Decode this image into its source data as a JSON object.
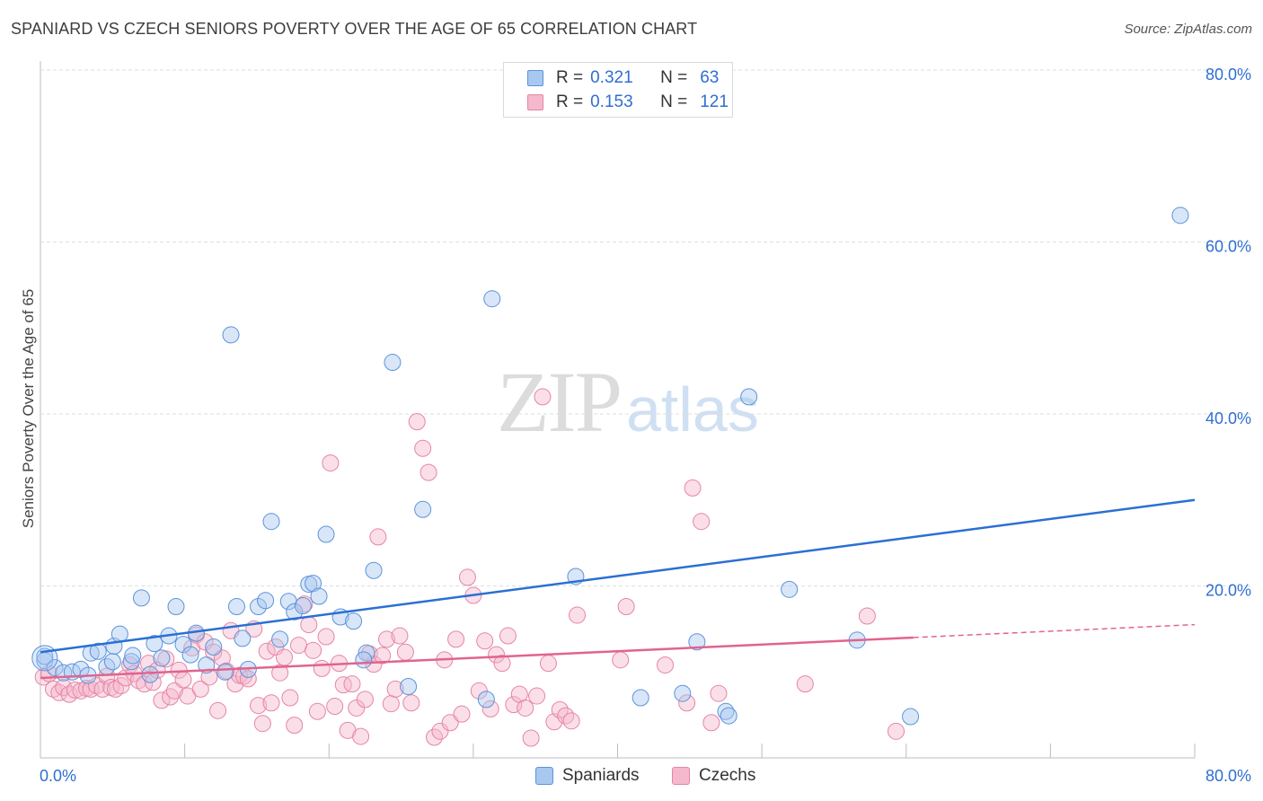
{
  "header": {
    "title": "SPANIARD VS CZECH SENIORS POVERTY OVER THE AGE OF 65 CORRELATION CHART",
    "source": "Source: ZipAtlas.com"
  },
  "watermark": {
    "zip": "ZIP",
    "atlas": "atlas"
  },
  "legend_top": [
    {
      "r_label": "R =",
      "r_value": "0.321",
      "n_label": "N =",
      "n_value": "63",
      "color": "#a9c8f0"
    },
    {
      "r_label": "R =",
      "r_value": "0.153",
      "n_label": "N =",
      "n_value": "121",
      "color": "#f5b8cc"
    }
  ],
  "legend_bottom": [
    {
      "label": "Spaniards",
      "color": "#a9c8f0"
    },
    {
      "label": "Czechs",
      "color": "#f5b8cc"
    }
  ],
  "chart_data": {
    "type": "scatter",
    "title": "SPANIARD VS CZECH SENIORS POVERTY OVER THE AGE OF 65 CORRELATION CHART",
    "ylabel": "Seniors Poverty Over the Age of 65",
    "xlim": [
      0,
      80
    ],
    "ylim": [
      0,
      80
    ],
    "x_tick_labels": [
      "0.0%",
      "80.0%"
    ],
    "y_tick_labels": [
      "20.0%",
      "40.0%",
      "60.0%",
      "80.0%"
    ],
    "y_ticks": [
      20,
      40,
      60,
      80
    ],
    "grid": "horizontal dashed",
    "legend": "top-center",
    "colors": {
      "spaniards_fill": "#a9c8f0",
      "spaniards_stroke": "#5b93dc",
      "spaniards_line": "#2b6fd3",
      "czechs_fill": "#f5b8cc",
      "czechs_stroke": "#e784a6",
      "czechs_line": "#e0648f",
      "tick_label": "#2f6fd0",
      "grid": "#dedede"
    },
    "series": [
      {
        "name": "Spaniards",
        "r": 0.321,
        "n": 63,
        "trend": {
          "x": [
            0,
            80
          ],
          "y": [
            12.3,
            30.0
          ]
        },
        "points": [
          [
            0.3,
            11.3
          ],
          [
            1.0,
            10.5
          ],
          [
            1.6,
            9.9
          ],
          [
            2.2,
            10.0
          ],
          [
            2.8,
            10.3
          ],
          [
            3.3,
            9.6
          ],
          [
            3.5,
            12.2
          ],
          [
            4.0,
            12.4
          ],
          [
            4.6,
            10.6
          ],
          [
            5.0,
            11.2
          ],
          [
            5.1,
            13.0
          ],
          [
            5.5,
            14.4
          ],
          [
            6.3,
            11.2
          ],
          [
            6.4,
            11.9
          ],
          [
            7.0,
            18.6
          ],
          [
            7.6,
            9.7
          ],
          [
            7.9,
            13.3
          ],
          [
            8.4,
            11.6
          ],
          [
            8.9,
            14.2
          ],
          [
            9.4,
            17.6
          ],
          [
            9.9,
            13.2
          ],
          [
            10.4,
            12.0
          ],
          [
            10.8,
            14.5
          ],
          [
            11.5,
            10.8
          ],
          [
            12.0,
            12.9
          ],
          [
            12.8,
            10.0
          ],
          [
            13.2,
            49.2
          ],
          [
            13.6,
            17.6
          ],
          [
            14.0,
            13.9
          ],
          [
            14.4,
            10.3
          ],
          [
            15.1,
            17.6
          ],
          [
            15.6,
            18.3
          ],
          [
            16.0,
            27.5
          ],
          [
            16.6,
            13.8
          ],
          [
            17.2,
            18.2
          ],
          [
            17.6,
            17.0
          ],
          [
            18.2,
            17.7
          ],
          [
            18.6,
            20.2
          ],
          [
            18.9,
            20.3
          ],
          [
            19.3,
            18.8
          ],
          [
            19.8,
            26.0
          ],
          [
            20.8,
            16.4
          ],
          [
            21.7,
            15.9
          ],
          [
            22.6,
            12.2
          ],
          [
            22.4,
            11.4
          ],
          [
            23.1,
            21.8
          ],
          [
            24.4,
            46.0
          ],
          [
            25.5,
            8.3
          ],
          [
            26.5,
            28.9
          ],
          [
            30.9,
            6.8
          ],
          [
            31.3,
            53.4
          ],
          [
            37.1,
            21.1
          ],
          [
            41.6,
            7.0
          ],
          [
            44.5,
            7.5
          ],
          [
            45.5,
            13.5
          ],
          [
            47.5,
            5.4
          ],
          [
            47.7,
            4.9
          ],
          [
            49.1,
            42.0
          ],
          [
            51.9,
            19.6
          ],
          [
            56.6,
            13.7
          ],
          [
            60.3,
            4.8
          ],
          [
            79.0,
            63.1
          ],
          [
            0.3,
            11.8
          ]
        ]
      },
      {
        "name": "Czechs",
        "r": 0.153,
        "n": 121,
        "trend": {
          "x": [
            0,
            60.5
          ],
          "y": [
            9.3,
            14.0
          ]
        },
        "trend_dashed": {
          "x": [
            60.5,
            80
          ],
          "y": [
            14.0,
            15.5
          ]
        },
        "points": [
          [
            0.2,
            9.4
          ],
          [
            0.6,
            9.8
          ],
          [
            0.9,
            8.0
          ],
          [
            1.3,
            7.6
          ],
          [
            1.6,
            8.2
          ],
          [
            2.0,
            7.4
          ],
          [
            2.4,
            7.9
          ],
          [
            2.8,
            7.8
          ],
          [
            3.2,
            8.1
          ],
          [
            3.5,
            8.0
          ],
          [
            3.9,
            8.4
          ],
          [
            4.3,
            8.0
          ],
          [
            4.6,
            9.5
          ],
          [
            4.9,
            8.2
          ],
          [
            5.2,
            8.0
          ],
          [
            5.6,
            8.4
          ],
          [
            5.9,
            9.3
          ],
          [
            6.2,
            10.8
          ],
          [
            6.5,
            9.8
          ],
          [
            6.8,
            9.0
          ],
          [
            7.2,
            8.6
          ],
          [
            7.5,
            11.0
          ],
          [
            7.8,
            8.8
          ],
          [
            8.1,
            10.2
          ],
          [
            8.4,
            6.7
          ],
          [
            8.7,
            11.5
          ],
          [
            9.0,
            7.1
          ],
          [
            9.3,
            7.8
          ],
          [
            9.6,
            10.2
          ],
          [
            9.9,
            9.1
          ],
          [
            10.2,
            7.2
          ],
          [
            10.5,
            12.8
          ],
          [
            10.8,
            14.3
          ],
          [
            11.1,
            8.0
          ],
          [
            11.4,
            13.5
          ],
          [
            11.7,
            9.4
          ],
          [
            12.0,
            12.3
          ],
          [
            12.3,
            5.5
          ],
          [
            12.6,
            11.6
          ],
          [
            12.9,
            10.1
          ],
          [
            13.2,
            14.8
          ],
          [
            13.5,
            8.6
          ],
          [
            13.8,
            9.6
          ],
          [
            14.1,
            9.5
          ],
          [
            14.4,
            9.2
          ],
          [
            14.8,
            15.0
          ],
          [
            15.1,
            6.1
          ],
          [
            15.4,
            4.0
          ],
          [
            15.7,
            12.4
          ],
          [
            16.0,
            6.4
          ],
          [
            16.3,
            12.9
          ],
          [
            16.6,
            9.9
          ],
          [
            16.9,
            11.7
          ],
          [
            17.3,
            7.0
          ],
          [
            17.6,
            3.8
          ],
          [
            17.9,
            13.1
          ],
          [
            18.3,
            17.9
          ],
          [
            18.6,
            15.5
          ],
          [
            18.9,
            12.5
          ],
          [
            19.2,
            5.4
          ],
          [
            19.5,
            10.4
          ],
          [
            19.8,
            14.1
          ],
          [
            20.1,
            34.3
          ],
          [
            20.4,
            6.0
          ],
          [
            20.7,
            11.0
          ],
          [
            21.0,
            8.5
          ],
          [
            21.3,
            3.2
          ],
          [
            21.6,
            8.6
          ],
          [
            21.9,
            5.8
          ],
          [
            22.2,
            2.5
          ],
          [
            22.5,
            6.8
          ],
          [
            22.8,
            12.1
          ],
          [
            23.1,
            10.9
          ],
          [
            23.4,
            25.7
          ],
          [
            23.7,
            11.9
          ],
          [
            24.0,
            13.8
          ],
          [
            24.3,
            6.3
          ],
          [
            24.6,
            8.0
          ],
          [
            24.9,
            14.2
          ],
          [
            25.3,
            12.3
          ],
          [
            25.7,
            6.4
          ],
          [
            26.1,
            39.1
          ],
          [
            26.5,
            36.0
          ],
          [
            26.9,
            33.2
          ],
          [
            27.3,
            2.4
          ],
          [
            27.7,
            3.1
          ],
          [
            28.0,
            11.4
          ],
          [
            28.4,
            4.1
          ],
          [
            28.8,
            13.8
          ],
          [
            29.2,
            5.1
          ],
          [
            29.6,
            21.0
          ],
          [
            30.0,
            18.9
          ],
          [
            30.4,
            7.8
          ],
          [
            30.8,
            13.6
          ],
          [
            31.2,
            5.7
          ],
          [
            31.6,
            12.0
          ],
          [
            32.0,
            11.0
          ],
          [
            32.4,
            14.2
          ],
          [
            32.8,
            6.2
          ],
          [
            33.2,
            7.4
          ],
          [
            33.6,
            5.8
          ],
          [
            34.0,
            2.3
          ],
          [
            34.4,
            7.2
          ],
          [
            34.8,
            42.0
          ],
          [
            35.2,
            11.0
          ],
          [
            35.6,
            4.2
          ],
          [
            36.0,
            5.6
          ],
          [
            36.4,
            4.9
          ],
          [
            36.8,
            4.3
          ],
          [
            37.2,
            16.6
          ],
          [
            40.2,
            11.4
          ],
          [
            40.6,
            17.6
          ],
          [
            43.3,
            10.8
          ],
          [
            44.8,
            6.4
          ],
          [
            45.2,
            31.4
          ],
          [
            45.8,
            27.5
          ],
          [
            46.5,
            4.1
          ],
          [
            47.0,
            7.5
          ],
          [
            53.0,
            8.6
          ],
          [
            57.3,
            16.5
          ],
          [
            59.3,
            3.1
          ]
        ]
      }
    ]
  }
}
